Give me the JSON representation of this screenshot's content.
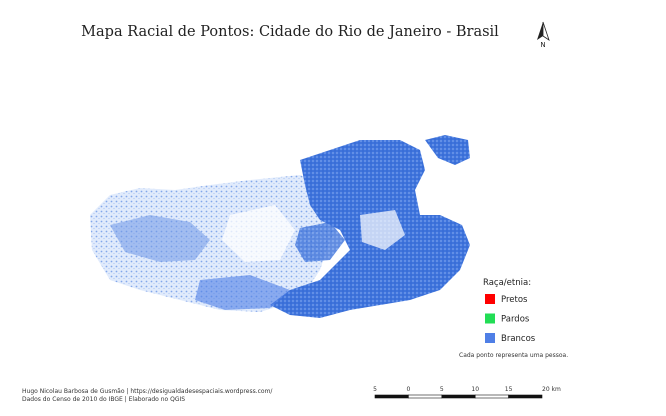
{
  "title": "Mapa Racial de Pontos: Cidade do Rio de Janeiro - Brasil",
  "north_arrow": {
    "label": "N"
  },
  "legend": {
    "title": "Raça/etnia:",
    "items": [
      {
        "label": "Pretos",
        "color": "#ff0000"
      },
      {
        "label": "Pardos",
        "color": "#22dd55"
      },
      {
        "label": "Brancos",
        "color": "#4f7fe6"
      }
    ],
    "note": "Cada ponto representa uma pessoa."
  },
  "credits": [
    "Hugo Nicolau Barbosa de Gusmão | https://desigualdadesespaciais.wordpress.com/",
    "Dados do Censo de 2010 do IBGE | Elaborado no QGIS"
  ],
  "scale_bar": {
    "labels": [
      "5",
      "0",
      "5",
      "10",
      "15",
      "20 km"
    ]
  }
}
